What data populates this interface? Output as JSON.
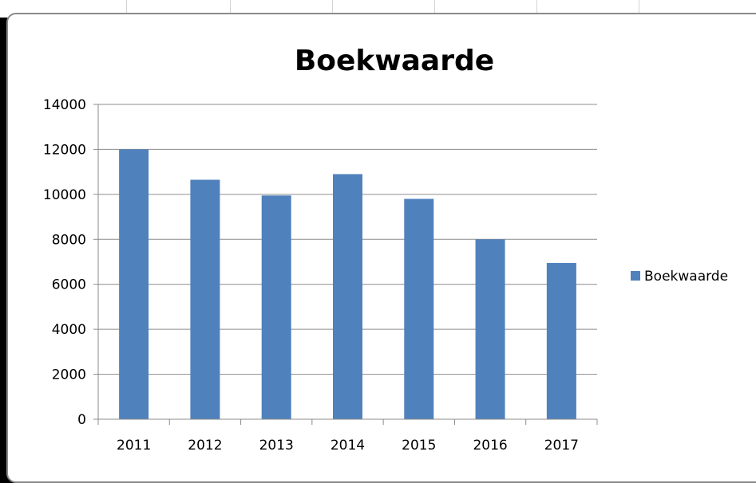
{
  "chart_data": {
    "type": "bar",
    "title": "Boekwaarde",
    "xlabel": "",
    "ylabel": "",
    "categories": [
      "2011",
      "2012",
      "2013",
      "2014",
      "2015",
      "2016",
      "2017"
    ],
    "series": [
      {
        "name": "Boekwaarde",
        "values": [
          12000,
          10650,
          9950,
          10900,
          9800,
          8000,
          6950
        ],
        "color": "#4f81bd"
      }
    ],
    "ylim": [
      0,
      14000
    ],
    "yticks": [
      "0",
      "2000",
      "4000",
      "6000",
      "8000",
      "10000",
      "12000",
      "14000"
    ],
    "grid": true,
    "legend_position": "right"
  }
}
